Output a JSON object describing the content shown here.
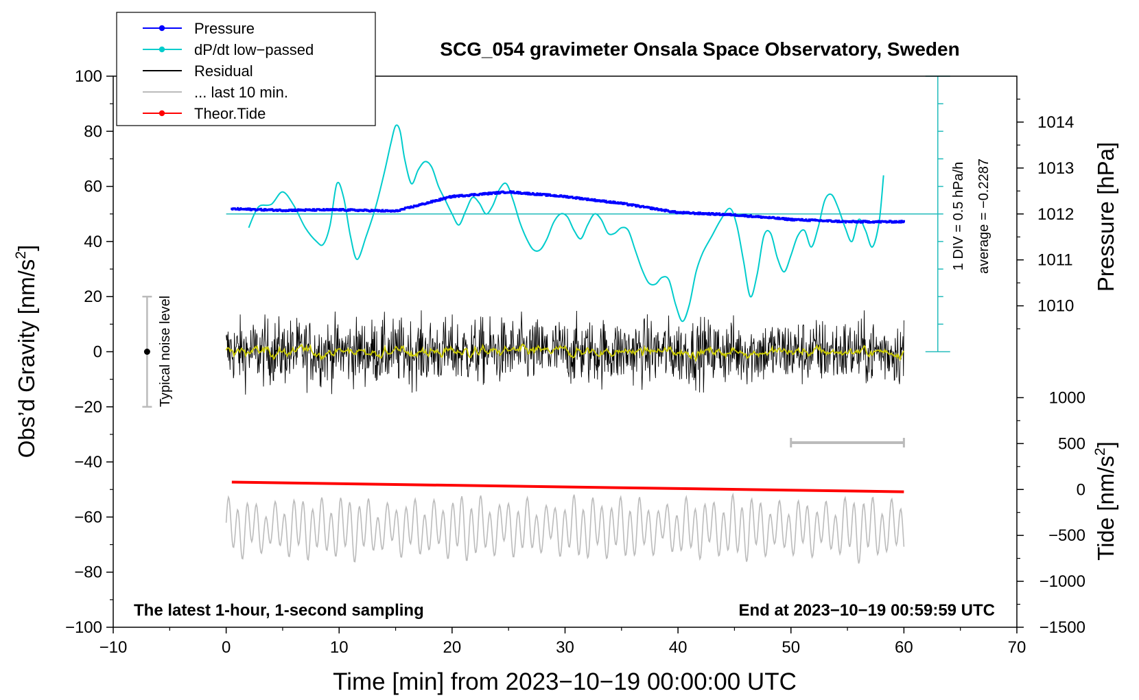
{
  "chart_data": {
    "type": "line",
    "title": "SCG_054 gravimeter Onsala Space Observatory, Sweden",
    "xlabel": "Time [min] from 2023−10−19 00:00:00 UTC",
    "ylabel": "Obs’d Gravity [nm/s²]",
    "ylabel_main": "Obs’d Gravity [nm/s",
    "ylabel_sup": "2",
    "ylabel_close": "]",
    "xlim": [
      -10,
      70
    ],
    "ylim": [
      -100,
      100
    ],
    "x_ticks": [
      -10,
      0,
      10,
      20,
      30,
      40,
      50,
      60,
      70
    ],
    "x_tick_labels": [
      "−10",
      "0",
      "10",
      "20",
      "30",
      "40",
      "50",
      "60",
      "70"
    ],
    "y_ticks": [
      -100,
      -80,
      -60,
      -40,
      -20,
      0,
      20,
      40,
      60,
      80,
      100
    ],
    "y_tick_labels": [
      "−100",
      "−80",
      "−60",
      "−40",
      "−20",
      "0",
      "20",
      "40",
      "60",
      "80",
      "100"
    ],
    "pressure_axis": {
      "label": "Pressure [hPa]",
      "ticks": [
        1010,
        1011,
        1012,
        1013,
        1014
      ],
      "tick_labels": [
        "1010",
        "1011",
        "1012",
        "1013",
        "1014"
      ],
      "gravity_of_1012": 50,
      "gravity_per_hPa": 16.67
    },
    "tide_axis": {
      "label_main": "Tide [nm/s",
      "label_sup": "2",
      "label_close": "]",
      "ticks": [
        1000,
        500,
        0,
        -500,
        -1000,
        -1500
      ],
      "tick_labels": [
        "1000",
        "500",
        "0",
        "−500",
        "−1000",
        "−1500"
      ],
      "gravity_of_0": -50,
      "gravity_per_1000": 33.33
    },
    "dpdt_scale": {
      "label_div": "1 DIV = 0.5 hPa/h",
      "label_avg": "average = −0.2287",
      "axis_x": 63,
      "range": [
        0,
        100
      ],
      "div_step": 10,
      "baseline": 50
    },
    "noise_bar": {
      "label": "Typical noise level",
      "x": -7,
      "center": 0,
      "range": [
        -20,
        20
      ]
    },
    "last10_bar": {
      "x_range": [
        50,
        60
      ],
      "y": -33
    },
    "annotations": {
      "left": "The latest 1‑hour, 1‑second sampling",
      "right": "End at 2023−10−19 00:59:59 UTC"
    },
    "legend": [
      {
        "label": "Pressure",
        "color": "#0000ff",
        "marker": true
      },
      {
        "label": "dP/dt low−passed",
        "color": "#00cccc",
        "marker": true
      },
      {
        "label": "Residual",
        "color": "#000000",
        "marker": false
      },
      {
        "label": "... last 10 min.",
        "color": "#bbbbbb",
        "marker": false
      },
      {
        "label": "Theor.Tide",
        "color": "#ff0000",
        "marker": true
      }
    ],
    "series": [
      {
        "name": "Pressure",
        "axis": "pressure_hPa",
        "color": "#0000ff",
        "x": [
          0.5,
          5,
          10,
          15,
          20,
          25,
          30,
          35,
          40,
          45,
          50,
          55,
          60
        ],
        "values": [
          1012.11,
          1012.08,
          1012.09,
          1012.06,
          1012.38,
          1012.48,
          1012.38,
          1012.23,
          1012.03,
          1011.98,
          1011.88,
          1011.83,
          1011.83
        ]
      },
      {
        "name": "dP/dt low−passed",
        "axis": "gravity_scaled",
        "color": "#00cccc",
        "x": [
          2,
          2.5,
          3,
          4,
          5,
          6,
          7,
          8,
          8.6,
          9.2,
          9.8,
          10.4,
          11,
          11.6,
          12.4,
          13.2,
          14,
          14.6,
          15,
          15.4,
          15.8,
          16.4,
          17,
          17.6,
          18.2,
          18.8,
          19.4,
          20,
          20.6,
          21.2,
          21.8,
          22.4,
          23,
          23.6,
          24.2,
          24.8,
          25.4,
          26,
          26.6,
          27.2,
          27.8,
          28.4,
          29,
          29.6,
          30.2,
          30.8,
          31.4,
          32,
          32.6,
          33.2,
          33.8,
          34.4,
          35,
          35.6,
          36.2,
          36.8,
          37.4,
          38,
          38.6,
          39.2,
          39.8,
          40.4,
          41,
          41.6,
          42.2,
          43,
          43.8,
          44.6,
          45.2,
          45.8,
          46.4,
          47,
          47.6,
          48.2,
          48.8,
          49.4,
          50,
          50.6,
          51.2,
          51.8,
          52.4,
          53,
          53.6,
          54.2,
          54.8,
          55.4,
          56,
          56.6,
          57.2,
          57.8,
          58.2
        ],
        "values": [
          45,
          50,
          53,
          53.5,
          58,
          53,
          45,
          40,
          39,
          46,
          61,
          56,
          42,
          33.5,
          42,
          52,
          65,
          76,
          82,
          80,
          70,
          61,
          66,
          69,
          67,
          60,
          55,
          50,
          46,
          51,
          56,
          54,
          50,
          53,
          59,
          61,
          55,
          47,
          41,
          37,
          37,
          41,
          47,
          50,
          49,
          44,
          41,
          46,
          50,
          48,
          43,
          43,
          45,
          44,
          37,
          30,
          25,
          24.5,
          27,
          26,
          17,
          11,
          17,
          29,
          36,
          42,
          48,
          52,
          46,
          33,
          20,
          28,
          42,
          43,
          34,
          29,
          35,
          42,
          44,
          38,
          45,
          55,
          57,
          52,
          45,
          40,
          48,
          44,
          38,
          47,
          64
        ]
      },
      {
        "name": "Residual",
        "axis": "gravity",
        "color": "#000000",
        "x_range": [
          0,
          60
        ],
        "amplitude": 8,
        "peak_range": [
          -16,
          15
        ],
        "mean": 0
      },
      {
        "name": "Residual smoothed",
        "axis": "gravity",
        "color": "#cccc00",
        "x_range": [
          0,
          60
        ],
        "mean": 0
      },
      {
        "name": "... last 10 min.",
        "axis": "tide_scaled",
        "color": "#bbbbbb",
        "x_range": [
          0,
          60
        ],
        "y_range": [
          -77,
          -47
        ],
        "mean": -64
      },
      {
        "name": "Theor.Tide",
        "axis": "tide_nm_s2",
        "color": "#ff0000",
        "x": [
          0.5,
          60
        ],
        "values": [
          80,
          -25
        ]
      }
    ]
  }
}
